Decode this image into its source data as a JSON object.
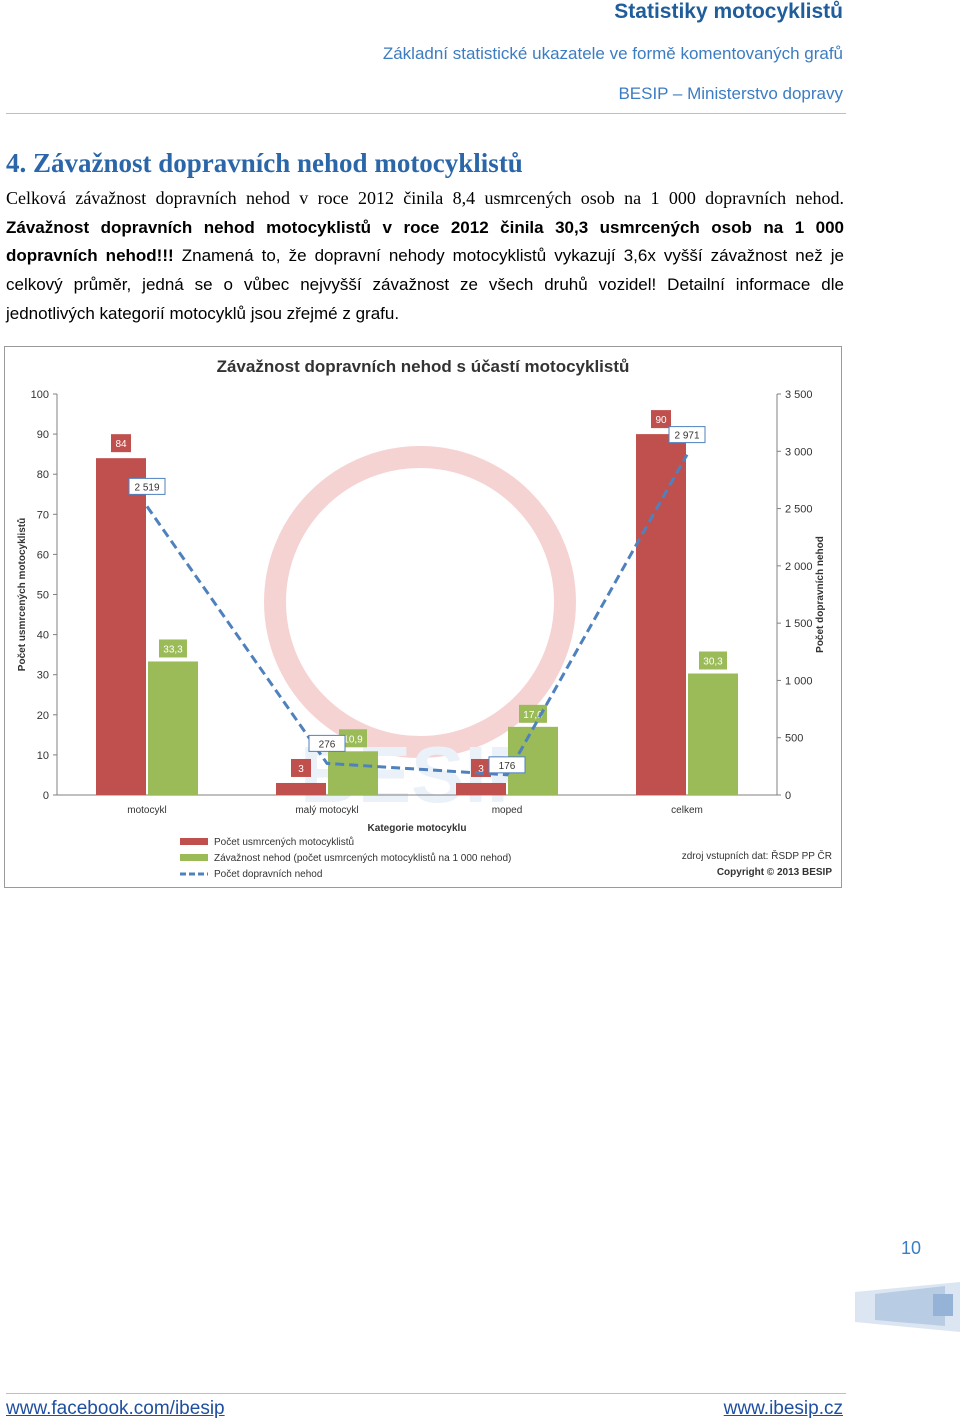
{
  "header": {
    "title": "Statistiky motocyklistů",
    "subtitle": "Základní statistické ukazatele ve formě komentovaných grafů",
    "org": "BESIP – Ministerstvo dopravy"
  },
  "section": {
    "title": "4. Závažnost dopravních nehod motocyklistů",
    "p1": "Celková závažnost dopravních nehod v roce 2012 činila 8,4 usmrcených osob na 1 000 dopravních nehod.",
    "p2_bold": "Závažnost dopravních nehod motocyklistů v roce 2012 činila 30,3 usmrcených osob na 1 000 dopravních nehod!!!",
    "p3": "Znamená to, že dopravní nehody motocyklistů vykazují 3,6x vyšší závažnost než je celkový průměr, jedná se o vůbec nejvyšší závažnost ze všech druhů vozidel! Detailní informace dle jednotlivých kategorií motocyklů jsou zřejmé z grafu."
  },
  "chart_data": {
    "type": "bar",
    "title": "Závažnost dopravních nehod s účastí motocyklistů",
    "xlabel": "Kategorie motocyklu",
    "ylabel": "Počet usmrcených motocyklistů",
    "y2label": "Počet dopravních nehod",
    "categories": [
      "motocykl",
      "malý motocykl",
      "moped",
      "celkem"
    ],
    "ylim": [
      0,
      100
    ],
    "y2lim": [
      0,
      3500
    ],
    "yticks": [
      "0",
      "10",
      "20",
      "30",
      "40",
      "50",
      "60",
      "70",
      "80",
      "90",
      "100"
    ],
    "y2ticks": [
      "0",
      "500",
      "1 000",
      "1 500",
      "2 000",
      "2 500",
      "3 000",
      "3 500"
    ],
    "series": [
      {
        "name": "Počet usmrcených motocyklistů",
        "axis": "left",
        "values": [
          84,
          3,
          3,
          90
        ],
        "labels": [
          "84",
          "3",
          "3",
          "90"
        ],
        "color": "#c0504d"
      },
      {
        "name": "Závažnost nehod (počet usmrcených motocyklistů na 1 000 nehod)",
        "axis": "left",
        "values": [
          33.3,
          10.9,
          17.0,
          30.3
        ],
        "labels": [
          "33,3",
          "10,9",
          "17,0",
          "30,3"
        ],
        "color": "#9bbb59"
      },
      {
        "name": "Počet dopravních nehod",
        "axis": "right",
        "type": "line",
        "values": [
          2519,
          276,
          176,
          2971
        ],
        "labels": [
          "2 519",
          "276",
          "176",
          "2 971"
        ],
        "color": "#4f81bd"
      }
    ],
    "source": "zdroj vstupních dat: ŘSDP PP ČR",
    "copyright": "Copyright © 2013 BESIP",
    "grid": false,
    "legend_position": "bottom-left"
  },
  "page_number": "10",
  "footer": {
    "left_link": "www.facebook.com/ibesip",
    "right_link": "www.ibesip.cz"
  }
}
